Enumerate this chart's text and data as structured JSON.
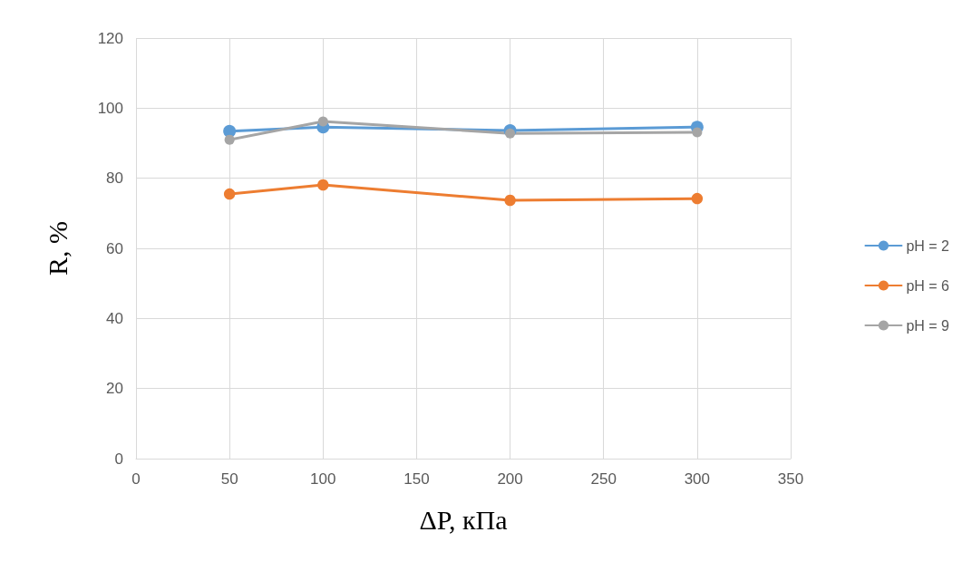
{
  "chart_data": {
    "type": "line",
    "xlabel": "ΔP, кПа",
    "ylabel": "R, %",
    "x": [
      50,
      100,
      200,
      300
    ],
    "series": [
      {
        "name": "pH = 2",
        "color": "#5b9bd5",
        "values": [
          93.4,
          94.6,
          93.6,
          94.6
        ]
      },
      {
        "name": "pH = 6",
        "color": "#ed7d31",
        "values": [
          75.5,
          78.1,
          73.7,
          74.2
        ]
      },
      {
        "name": "pH = 9",
        "color": "#a5a5a5",
        "values": [
          91.0,
          96.2,
          92.8,
          93.1
        ]
      }
    ],
    "xlim": [
      0,
      350
    ],
    "xticks": [
      0,
      50,
      100,
      150,
      200,
      250,
      300,
      350
    ],
    "ylim": [
      0,
      120
    ],
    "yticks": [
      0,
      20,
      40,
      60,
      80,
      100,
      120
    ],
    "grid": true,
    "legend": "right",
    "marker": "circle",
    "line_style": "solid"
  }
}
